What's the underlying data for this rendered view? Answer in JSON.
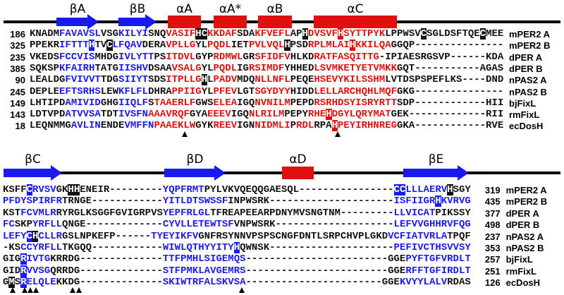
{
  "blocks": [
    {
      "structure": [
        "βA",
        "βB",
        "αA",
        "αA*",
        "αB",
        "αC"
      ],
      "rows": [
        {
          "start": 186,
          "name": "mPER2 A",
          "segments": [
            [
              "KNADM",
              "black"
            ],
            [
              "FAVAVSL",
              "blue"
            ],
            [
              "VSG",
              "black"
            ],
            [
              "KILYI",
              "blue"
            ],
            [
              "SNQ",
              "black"
            ],
            [
              "VASIF",
              "red"
            ],
            [
              "H",
              "box"
            ],
            [
              "C",
              "box"
            ],
            [
              "KKDAF",
              "red"
            ],
            [
              "SDA",
              "black"
            ],
            [
              "KFVEFL",
              "red"
            ],
            [
              "AP",
              "black"
            ],
            [
              "H",
              "box"
            ],
            [
              "DVSVF",
              "red"
            ],
            [
              "H",
              "box-red"
            ],
            [
              "SYTTPYK",
              "red"
            ],
            [
              "LPPWSV",
              "black"
            ],
            [
              "C",
              "box"
            ],
            [
              "SGLDSFTQE",
              "black"
            ],
            [
              "C",
              "box"
            ],
            [
              "MEE",
              "black"
            ]
          ]
        },
        {
          "start": 325,
          "name": "mPER2 B",
          "segments": [
            [
              "PPEKR",
              "black"
            ],
            [
              "IFTTT",
              "blue"
            ],
            [
              "H",
              "box-blue"
            ],
            [
              "TV",
              "black"
            ],
            [
              "C",
              "box"
            ],
            [
              "LFQAV",
              "blue"
            ],
            [
              "DERA",
              "black"
            ],
            [
              "VPLLG",
              "red"
            ],
            [
              "YL",
              "black"
            ],
            [
              "PQDL",
              "red"
            ],
            [
              "IET",
              "black"
            ],
            [
              "PVLVQL",
              "red"
            ],
            [
              "H",
              "box"
            ],
            [
              "PSD",
              "black"
            ],
            [
              "RPLMLAI",
              "red"
            ],
            [
              "H",
              "box-red"
            ],
            [
              "KKILQA",
              "red"
            ],
            [
              "GGQP---------------",
              "black"
            ]
          ]
        },
        {
          "start": 235,
          "name": "dPER A",
          "segments": [
            [
              "VKEDS",
              "black"
            ],
            [
              "FCCVIS",
              "blue"
            ],
            [
              "MHDG",
              "black"
            ],
            [
              "IVLYTT",
              "blue"
            ],
            [
              "PS",
              "black"
            ],
            [
              "ITDVL",
              "red"
            ],
            [
              "GYP",
              "black"
            ],
            [
              "RDMWL",
              "red"
            ],
            [
              "GR",
              "black"
            ],
            [
              "SFIDFV",
              "red"
            ],
            [
              "HLKD",
              "black"
            ],
            [
              "RATFASQITTG",
              "red"
            ],
            [
              "-IPIAESRGSVP------KDA",
              "black"
            ]
          ]
        },
        {
          "start": 385,
          "name": "dPER B",
          "segments": [
            [
              "SQKSP",
              "black"
            ],
            [
              "KFAIRH",
              "blue"
            ],
            [
              "TATG",
              "black"
            ],
            [
              "IISHV",
              "blue"
            ],
            [
              "DSAA",
              "black"
            ],
            [
              "VSALG",
              "red"
            ],
            [
              "YL",
              "black"
            ],
            [
              "PQDL",
              "red"
            ],
            [
              "IG",
              "black"
            ],
            [
              "RSIMDF",
              "red"
            ],
            [
              "YHHED",
              "black"
            ],
            [
              "LSVMKETYETVMKK",
              "red"
            ],
            [
              "GQT-----------AGAS",
              "black"
            ]
          ]
        },
        {
          "start": 90,
          "name": "nPAS2 A",
          "segments": [
            [
              "LEALDG",
              "black"
            ],
            [
              "FVIVVT",
              "blue"
            ],
            [
              "TDG",
              "black"
            ],
            [
              "SIIYT",
              "blue"
            ],
            [
              "SDS",
              "black"
            ],
            [
              "ITPLLG",
              "red"
            ],
            [
              "H",
              "box"
            ],
            [
              "L",
              "black"
            ],
            [
              "PADV",
              "red"
            ],
            [
              "MDQ",
              "black"
            ],
            [
              "NLLNFL",
              "red"
            ],
            [
              "PEQE",
              "black"
            ],
            [
              "HSEVYKILSSHM",
              "red"
            ],
            [
              "LVTDSPSPEFLKS----DND",
              "black"
            ]
          ]
        },
        {
          "start": 245,
          "name": "nPAS2 B",
          "segments": [
            [
              "DEPLE",
              "black"
            ],
            [
              "EFTSRHS",
              "blue"
            ],
            [
              "LEW",
              "black"
            ],
            [
              "KFLFL",
              "blue"
            ],
            [
              "DHRA",
              "black"
            ],
            [
              "PPIIG",
              "red"
            ],
            [
              "YL",
              "black"
            ],
            [
              "PFEV",
              "red"
            ],
            [
              "LGT",
              "black"
            ],
            [
              "SGYDYY",
              "red"
            ],
            [
              "HIDD",
              "black"
            ],
            [
              "LELLARCHQHLMQF",
              "red"
            ],
            [
              "GKG---------------",
              "black"
            ]
          ]
        },
        {
          "start": 149,
          "name": "bjFixL",
          "segments": [
            [
              "LHTIPD",
              "black"
            ],
            [
              "AMIVID",
              "blue"
            ],
            [
              "GHG",
              "black"
            ],
            [
              "IIQLF",
              "blue"
            ],
            [
              "S",
              "black"
            ],
            [
              "TAAERLF",
              "red"
            ],
            [
              "GWS",
              "black"
            ],
            [
              "ELEA",
              "red"
            ],
            [
              "IGQ",
              "black"
            ],
            [
              "NVNILM",
              "red"
            ],
            [
              "PEPD",
              "black"
            ],
            [
              "RSRHDSYISRYRTT",
              "red"
            ],
            [
              "SDP------------HII",
              "black"
            ]
          ]
        },
        {
          "start": 143,
          "name": "rmFixL",
          "segments": [
            [
              "LDTVPD",
              "black"
            ],
            [
              "ATVVSA",
              "blue"
            ],
            [
              "TDT",
              "black"
            ],
            [
              "IVSFN",
              "blue"
            ],
            [
              "AAAVRQF",
              "red"
            ],
            [
              "GYA",
              "black"
            ],
            [
              "EEEV",
              "red"
            ],
            [
              "IGQ",
              "black"
            ],
            [
              "NLRILM",
              "red"
            ],
            [
              "PEPY",
              "black"
            ],
            [
              "RHE",
              "red"
            ],
            [
              "H",
              "box-red"
            ],
            [
              "DGYLQRYMAT",
              "red"
            ],
            [
              "GEK-------------RII",
              "black"
            ]
          ]
        },
        {
          "start": 18,
          "name": "ecDosH",
          "segments": [
            [
              "LEQNMMG",
              "black"
            ],
            [
              "AVLIN",
              "blue"
            ],
            [
              "ENDE",
              "black"
            ],
            [
              "VMFFN",
              "blue"
            ],
            [
              "PAAEKLW",
              "red"
            ],
            [
              "GYK",
              "black"
            ],
            [
              "REEV",
              "red"
            ],
            [
              "IGN",
              "black"
            ],
            [
              "NIDMLI",
              "red"
            ],
            [
              "P",
              "black"
            ],
            [
              "RDL",
              "red"
            ],
            [
              "RPA",
              "black"
            ],
            [
              "H",
              "box-red"
            ],
            [
              "PEYIRHNREG",
              "red"
            ],
            [
              "GKA------------RVE",
              "black"
            ]
          ]
        }
      ]
    },
    {
      "structure": [
        "βC",
        "βD",
        "αD",
        "βE"
      ],
      "rows": [
        {
          "end": 319,
          "name": "mPER2 A",
          "segments": [
            [
              "KSFF",
              "black"
            ],
            [
              "C",
              "box-blue"
            ],
            [
              "RVSV",
              "blue"
            ],
            [
              "GK",
              "black"
            ],
            [
              "HH",
              "box"
            ],
            [
              "ENEIR---------",
              "black"
            ],
            [
              "YQPFRMT",
              "blue"
            ],
            [
              "PYLVKVQEQQGAESQL----------------",
              "black"
            ],
            [
              "CC",
              "box-blue"
            ],
            [
              "LLLAERV",
              "blue"
            ],
            [
              "H",
              "box"
            ],
            [
              "SGY",
              "black"
            ]
          ]
        },
        {
          "end": 435,
          "name": "mPER2 B",
          "segments": [
            [
              "PFDYSPIRFR",
              "blue"
            ],
            [
              "TRNGE------------",
              "black"
            ],
            [
              "YITLDTSWSSF",
              "blue"
            ],
            [
              "INPWSRK---------------------",
              "black"
            ],
            [
              "ISFIIGR",
              "blue"
            ],
            [
              "H",
              "box-blue"
            ],
            [
              "KVRVG",
              "blue"
            ]
          ]
        },
        {
          "end": 377,
          "name": "dPER A",
          "segments": [
            [
              "KST",
              "black"
            ],
            [
              "FCVMLR",
              "blue"
            ],
            [
              "RYRGLKSGGFGVIGRPVS",
              "black"
            ],
            [
              "YEPFRLGL",
              "blue"
            ],
            [
              "TFREAPEEARPDNYMVSNGTNM---------",
              "black"
            ],
            [
              "LLVICAT",
              "blue"
            ],
            [
              "PIKSSY",
              "black"
            ]
          ]
        },
        {
          "end": 498,
          "name": "dPER B",
          "segments": [
            [
              "FC",
              "blue"
            ],
            [
              "SKP",
              "black"
            ],
            [
              "YRFLL",
              "blue"
            ],
            [
              "QNGE-------------",
              "black"
            ],
            [
              "CYVLLETEWTSF",
              "blue"
            ],
            [
              "VNPWSRK--------------------",
              "black"
            ],
            [
              "LEFVVGHHRVFQG",
              "blue"
            ]
          ]
        },
        {
          "end": 237,
          "name": "nPAS2 A",
          "segments": [
            [
              "LEFY",
              "blue"
            ],
            [
              "C",
              "box-blue"
            ],
            [
              "H",
              "box"
            ],
            [
              "CLLR",
              "blue"
            ],
            [
              "GSLNPKEFP------",
              "black"
            ],
            [
              "TYEYIKFV",
              "blue"
            ],
            [
              "GNFRSYNNVPSPSCNGFDNTLSRPCHVPLGKD",
              "black"
            ],
            [
              "VCFIATVRLA",
              "blue"
            ],
            [
              "TPQF",
              "black"
            ]
          ]
        },
        {
          "end": 353,
          "name": "nPAS2 B",
          "segments": [
            [
              "-KS",
              "black"
            ],
            [
              "CCYRFLL",
              "blue"
            ],
            [
              "TKGQQ------------",
              "black"
            ],
            [
              "WIWLQTHYYITY",
              "blue"
            ],
            [
              "H",
              "box-blue"
            ],
            [
              "QWNSK---------------------",
              "black"
            ],
            [
              "PEFIVCTHSVVSY",
              "blue"
            ]
          ]
        },
        {
          "end": 257,
          "name": "bjFixL",
          "segments": [
            [
              "GIG",
              "black"
            ],
            [
              "R",
              "box-blue"
            ],
            [
              "IVTG",
              "blue"
            ],
            [
              "KRRDG--------------",
              "black"
            ],
            [
              "TTFPMHLSIGEMQS",
              "blue"
            ],
            [
              "------------------------GGE",
              "black"
            ],
            [
              "PYFTGFVRDLT",
              "blue"
            ]
          ]
        },
        {
          "end": 251,
          "name": "rmFixL",
          "segments": [
            [
              "GID",
              "black"
            ],
            [
              "R",
              "box-blue"
            ],
            [
              "VVSG",
              "blue"
            ],
            [
              "QRRDG--------------",
              "black"
            ],
            [
              "STFPMKLAVGEMRS",
              "blue"
            ],
            [
              "------------------------GGE",
              "black"
            ],
            [
              "RFFTGFIRDLT",
              "blue"
            ]
          ]
        },
        {
          "end": 126,
          "name": "ecDosH",
          "segments": [
            [
              "G",
              "black"
            ],
            [
              "M",
              "box"
            ],
            [
              "S",
              "black"
            ],
            [
              "R",
              "box-blue"
            ],
            [
              "ELQLE",
              "blue"
            ],
            [
              "KKDG--------------",
              "black"
            ],
            [
              "SKIWTRFALSKVSA",
              "blue"
            ],
            [
              "-----------------------GGE",
              "black"
            ],
            [
              "KVYYLALV",
              "blue"
            ],
            [
              "RDAS",
              "black"
            ]
          ]
        }
      ]
    }
  ]
}
